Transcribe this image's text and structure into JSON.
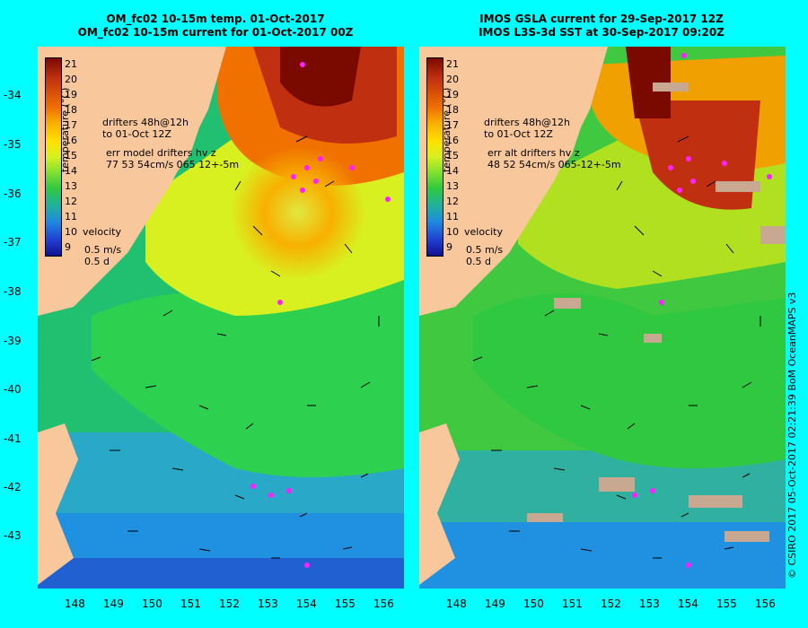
{
  "panels": [
    {
      "title1": "OM_fc02 10-15m temp. 01-Oct-2017",
      "title2": "OM_fc02 10-15m current for 01-Oct-2017 00Z",
      "drifters": "drifters 48h@12h",
      "drifters2": "to 01-Oct 12Z",
      "err": "err model drifters hv z",
      "err2": "77 53 54cm/s 065 12+-5m",
      "velocity": "velocity",
      "vel_speed": "0.5 m/s",
      "vel_days": "0.5 d"
    },
    {
      "title1": "IMOS GSLA current for 29-Sep-2017 12Z",
      "title2": "IMOS L3S-3d SST at 30-Sep-2017 09:20Z",
      "drifters": "drifters 48h@12h",
      "drifters2": "to 01-Oct 12Z",
      "err": "err alt drifters hv z",
      "err2": "48 52 54cm/s 065-12+-5m",
      "velocity": "velocity",
      "vel_speed": "0.5 m/s",
      "vel_days": "0.5 d"
    }
  ],
  "colorbar": {
    "label": "temperature (°C)",
    "ticks": [
      "21",
      "20",
      "19",
      "18",
      "17",
      "16",
      "15",
      "14",
      "13",
      "12",
      "11",
      "10",
      "9"
    ],
    "colors": [
      "#7a0a00",
      "#f07000",
      "#ffe000",
      "#30c840",
      "#2088e0",
      "#101090"
    ]
  },
  "y_labels": [
    "-34",
    "-35",
    "-36",
    "-37",
    "-38",
    "-39",
    "-40",
    "-41",
    "-42",
    "-43"
  ],
  "x_labels": [
    "148",
    "149",
    "150",
    "151",
    "152",
    "153",
    "154",
    "155",
    "156"
  ],
  "credit": "© CSIRO 2017   05-Oct-2017 02:21:39 BoM OceanMAPS v3"
}
